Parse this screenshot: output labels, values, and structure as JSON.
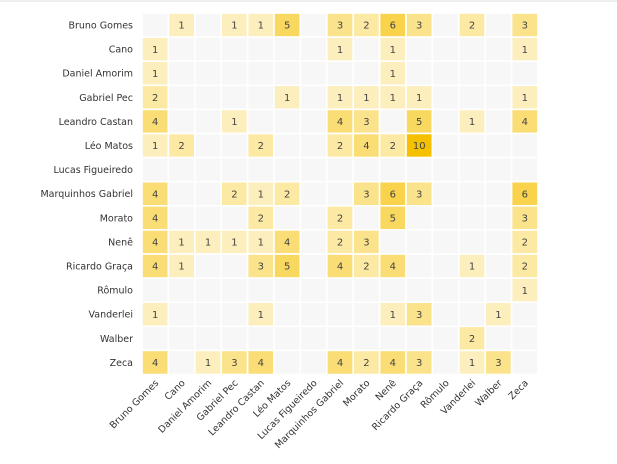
{
  "chart_data": {
    "type": "heatmap",
    "title": "",
    "xlabel": "",
    "ylabel": "",
    "rows": [
      "Bruno Gomes",
      "Cano",
      "Daniel Amorim",
      "Gabriel Pec",
      "Leandro Castan",
      "Léo Matos",
      "Lucas Figueiredo",
      "Marquinhos Gabriel",
      "Morato",
      "Nenê",
      "Ricardo Graça",
      "Rômulo",
      "Vanderlei",
      "Walber",
      "Zeca"
    ],
    "columns": [
      "Bruno Gomes",
      "Cano",
      "Daniel Amorim",
      "Gabriel Pec",
      "Leandro Castan",
      "Léo Matos",
      "Lucas Figueiredo",
      "Marquinhos Gabriel",
      "Morato",
      "Nenê",
      "Ricardo Graça",
      "Rômulo",
      "Vanderlei",
      "Walber",
      "Zeca"
    ],
    "values": [
      [
        null,
        1,
        null,
        1,
        1,
        5,
        null,
        3,
        2,
        6,
        3,
        null,
        2,
        null,
        3
      ],
      [
        1,
        null,
        null,
        null,
        null,
        null,
        null,
        1,
        null,
        1,
        null,
        null,
        null,
        null,
        1
      ],
      [
        1,
        null,
        null,
        null,
        null,
        null,
        null,
        null,
        null,
        1,
        null,
        null,
        null,
        null,
        null
      ],
      [
        2,
        null,
        null,
        null,
        null,
        1,
        null,
        1,
        1,
        1,
        1,
        null,
        null,
        null,
        1
      ],
      [
        4,
        null,
        null,
        1,
        null,
        null,
        null,
        4,
        3,
        null,
        5,
        null,
        1,
        null,
        4
      ],
      [
        1,
        2,
        null,
        null,
        2,
        null,
        null,
        2,
        4,
        2,
        10,
        null,
        null,
        null,
        null
      ],
      [
        null,
        null,
        null,
        null,
        null,
        null,
        null,
        null,
        null,
        null,
        null,
        null,
        null,
        null,
        null
      ],
      [
        4,
        null,
        null,
        2,
        1,
        2,
        null,
        null,
        3,
        6,
        3,
        null,
        null,
        null,
        6
      ],
      [
        4,
        null,
        null,
        null,
        2,
        null,
        null,
        2,
        null,
        5,
        null,
        null,
        null,
        null,
        3
      ],
      [
        4,
        1,
        1,
        1,
        1,
        4,
        null,
        2,
        3,
        null,
        null,
        null,
        null,
        null,
        2
      ],
      [
        4,
        1,
        null,
        null,
        3,
        5,
        null,
        4,
        2,
        4,
        null,
        null,
        1,
        null,
        2
      ],
      [
        null,
        null,
        null,
        null,
        null,
        null,
        null,
        null,
        null,
        null,
        null,
        null,
        null,
        null,
        1
      ],
      [
        1,
        null,
        null,
        null,
        1,
        null,
        null,
        null,
        null,
        1,
        3,
        null,
        null,
        1,
        null
      ],
      [
        null,
        null,
        null,
        null,
        null,
        null,
        null,
        null,
        null,
        null,
        null,
        null,
        2,
        null,
        null
      ],
      [
        4,
        null,
        1,
        3,
        4,
        null,
        null,
        4,
        2,
        4,
        3,
        null,
        1,
        3,
        null
      ]
    ],
    "value_range": [
      0,
      10
    ],
    "colors": {
      "empty": "#f7f7f7",
      "low": "#fff8e1",
      "high": "#f5c000",
      "text": "#444444",
      "label": "#333333"
    }
  }
}
